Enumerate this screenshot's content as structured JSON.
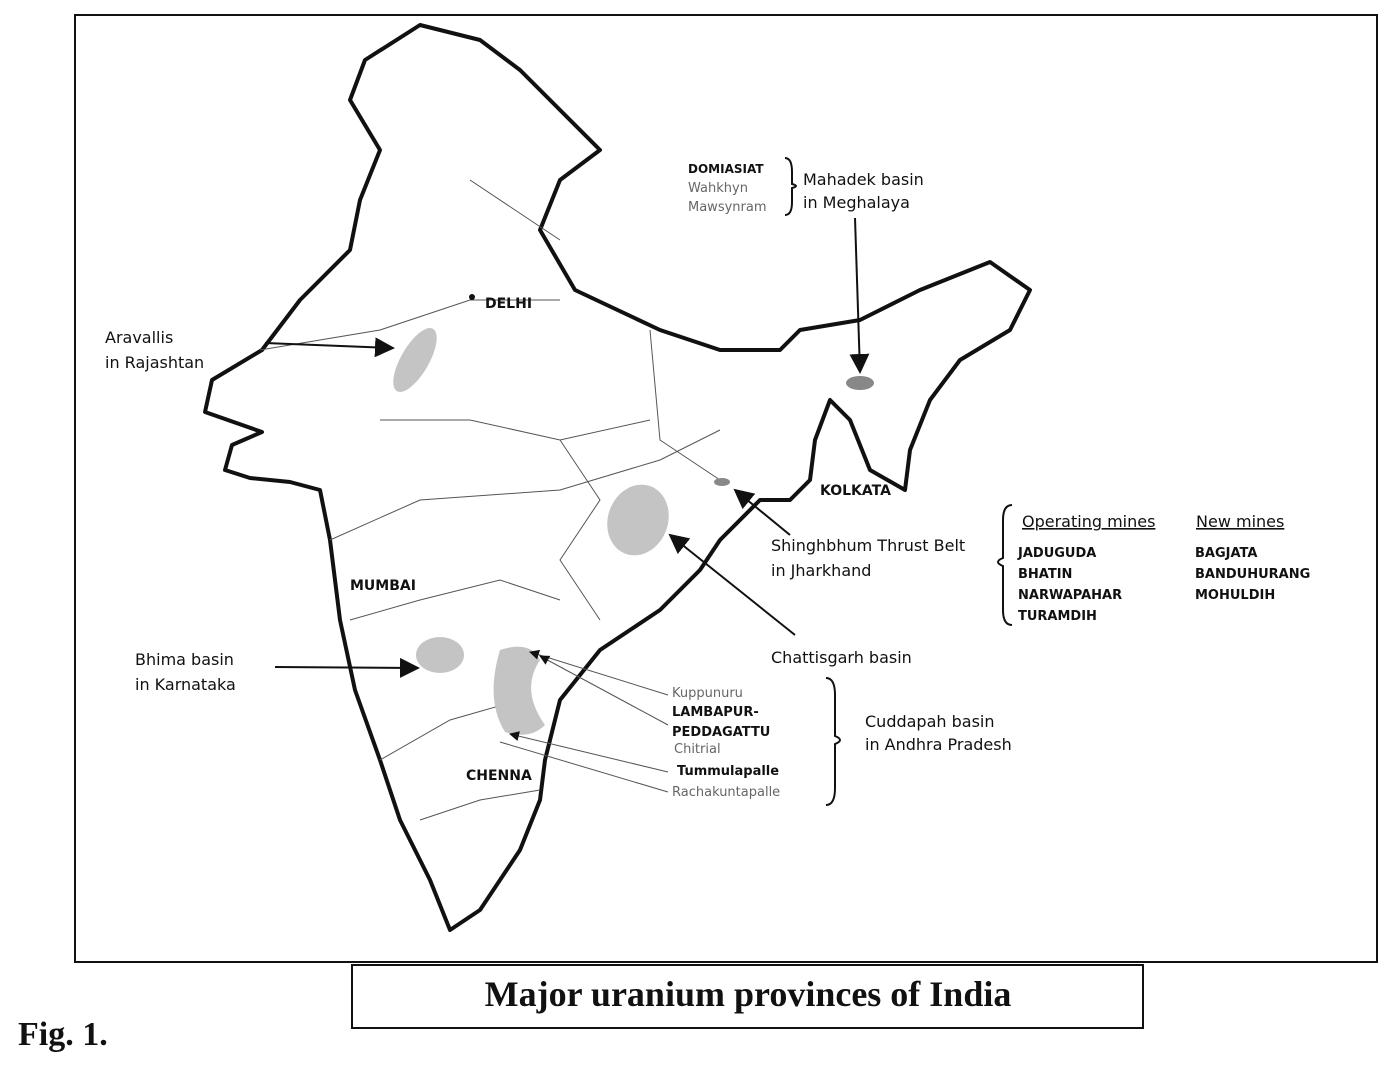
{
  "figure": {
    "label": "Fig. 1.",
    "caption": "Major uranium provinces of India"
  },
  "cities": [
    "DELHI",
    "MUMBAI",
    "KOLKATA",
    "CHENNA"
  ],
  "provinces": [
    {
      "name": [
        "Mahadek basin",
        "in Meghalaya"
      ],
      "deposits": [
        "DOMIASIAT",
        "Wahkhyn",
        "Mawsynram"
      ]
    },
    {
      "name": [
        "Aravallis",
        "in Rajashtan"
      ]
    },
    {
      "name": [
        "Shinghbhum Thrust Belt",
        "in Jharkhand"
      ],
      "operating_mines": {
        "heading": "Operating mines",
        "items": [
          "JADUGUDA",
          "BHATIN",
          "NARWAPAHAR",
          "TURAMDIH"
        ]
      },
      "new_mines": {
        "heading": "New mines",
        "items": [
          "BAGJATA",
          "BANDUHURANG",
          "MOHULDIH"
        ]
      }
    },
    {
      "name": [
        "Bhima basin",
        "in Karnataka"
      ]
    },
    {
      "name": [
        "Chattisgarh basin"
      ]
    },
    {
      "name": [
        "Cuddapah basin",
        "in Andhra Pradesh"
      ],
      "deposits": [
        "Kuppunuru",
        "LAMBAPUR-",
        "PEDDAGATTU",
        "Chitrial",
        "Tummulapalle",
        "Rachakuntapalle"
      ]
    }
  ]
}
